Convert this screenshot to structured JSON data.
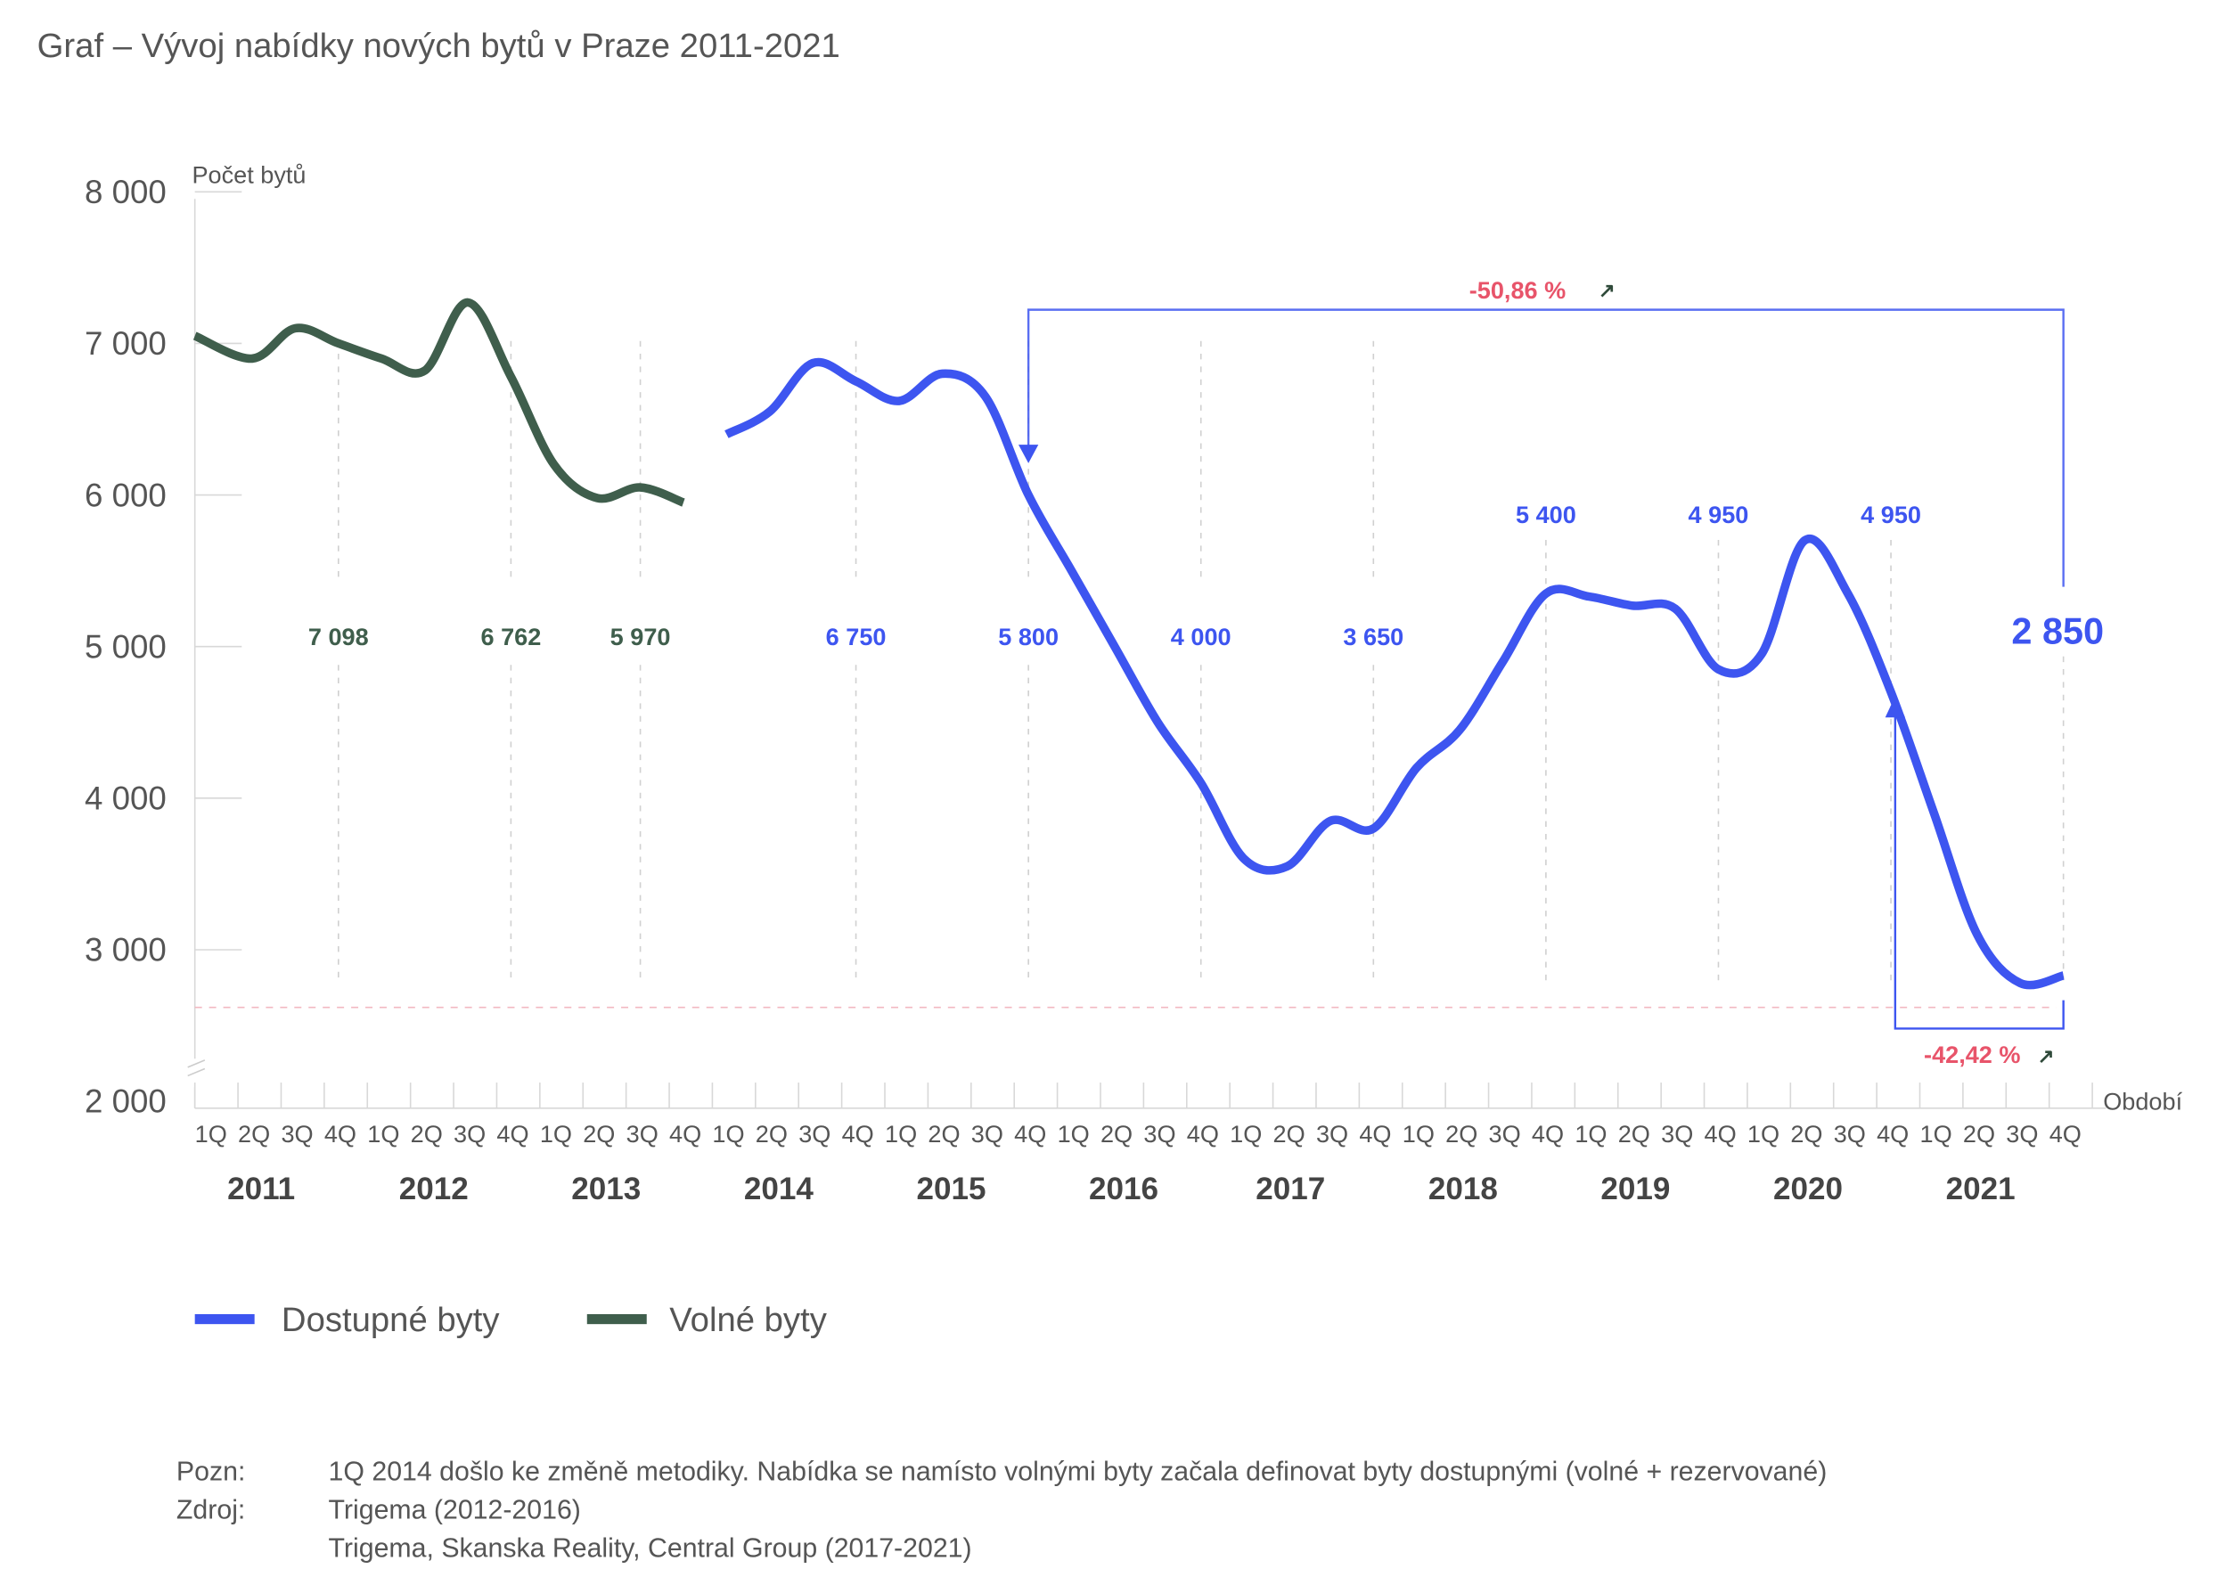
{
  "title": "Graf – Vývoj nabídky nových bytů v Praze  2011-2021",
  "colors": {
    "dostupne": "#3d55f0",
    "volne": "#3f5e4c",
    "percent": "#e8546a",
    "reference_line": "#f2b8c2",
    "axis": "#d8d8d8",
    "grid": "#d0d0d0"
  },
  "chart_data": {
    "type": "line",
    "title": "Graf – Vývoj nabídky nových bytů v Praze  2011-2021",
    "ylabel": "Počet bytů",
    "xlabel": "Období",
    "ylim": [
      2000,
      8000
    ],
    "y_axis_break": true,
    "yticks": [
      2000,
      3000,
      4000,
      5000,
      6000,
      7000,
      8000
    ],
    "ytick_labels": [
      "2 000",
      "3 000",
      "4 000",
      "5 000",
      "6 000",
      "7 000",
      "8 000"
    ],
    "quarter_labels": [
      "1Q",
      "2Q",
      "3Q",
      "4Q"
    ],
    "years": [
      "2011",
      "2012",
      "2013",
      "2014",
      "2015",
      "2016",
      "2017",
      "2018",
      "2019",
      "2020",
      "2021"
    ],
    "grid": false,
    "legend_position": "bottom-left",
    "series": [
      {
        "name": "Volné byty",
        "key": "volne",
        "start": "2011-1Q",
        "values": [
          7050,
          6900,
          7100,
          7000,
          6900,
          6820,
          7270,
          6780,
          6200,
          5980,
          6050,
          5950
        ]
      },
      {
        "name": "Dostupné byty",
        "key": "dostupne",
        "start": "2014-1Q",
        "values": [
          6400,
          6550,
          6870,
          6750,
          6620,
          6800,
          6650,
          6000,
          5500,
          5000,
          4500,
          4100,
          3600,
          3550,
          3850,
          3800,
          4200,
          4450,
          4900,
          5350,
          5330,
          5270,
          5250,
          4850,
          4950,
          5700,
          5350,
          4700,
          3900,
          3100,
          2780,
          2830
        ]
      }
    ],
    "annotations": {
      "year_values": [
        {
          "year": "2011",
          "quarter": "4Q",
          "label": "7 098",
          "series": "volne",
          "row": "low"
        },
        {
          "year": "2012",
          "quarter": "4Q",
          "label": "6 762",
          "series": "volne",
          "row": "low"
        },
        {
          "year": "2013",
          "quarter": "3Q",
          "label": "5 970",
          "series": "volne",
          "row": "low"
        },
        {
          "year": "2014",
          "quarter": "4Q",
          "label": "6 750",
          "series": "dostupne",
          "row": "low"
        },
        {
          "year": "2015",
          "quarter": "4Q",
          "label": "5 800",
          "series": "dostupne",
          "row": "low"
        },
        {
          "year": "2016",
          "quarter": "4Q",
          "label": "4 000",
          "series": "dostupne",
          "row": "low"
        },
        {
          "year": "2017",
          "quarter": "4Q",
          "label": "3 650",
          "series": "dostupne",
          "row": "low"
        },
        {
          "year": "2018",
          "quarter": "4Q",
          "label": "5 400",
          "series": "dostupne",
          "row": "high"
        },
        {
          "year": "2019",
          "quarter": "4Q",
          "label": "4 950",
          "series": "dostupne",
          "row": "high"
        },
        {
          "year": "2020",
          "quarter": "4Q",
          "label": "4 950",
          "series": "dostupne",
          "row": "high"
        },
        {
          "year": "2021",
          "quarter": "4Q",
          "label": "2 850",
          "series": "dostupne",
          "row": "big"
        }
      ],
      "changes": [
        {
          "label": "-50,86 %",
          "from": "2015-4Q",
          "to": "2021-4Q",
          "position": "top"
        },
        {
          "label": "-42,42 %",
          "from": "2020-4Q",
          "to": "2021-4Q",
          "position": "bottom"
        }
      ],
      "reference_line_value": 2620
    }
  },
  "legend": [
    {
      "label": "Dostupné byty",
      "key": "dostupne"
    },
    {
      "label": "Volné byty",
      "key": "volne"
    }
  ],
  "notes": {
    "pozn_label": "Pozn:",
    "pozn_text": "1Q 2014 došlo ke změně metodiky. Nabídka se namísto volnými byty začala definovat byty dostupnými (volné + rezervované)",
    "zdroj_label": "Zdroj:",
    "zdroj_lines": [
      "Trigema (2012-2016)",
      "Trigema, Skanska Reality, Central Group (2017-2021)"
    ]
  },
  "icons": {
    "trend_arrow": "↗"
  }
}
